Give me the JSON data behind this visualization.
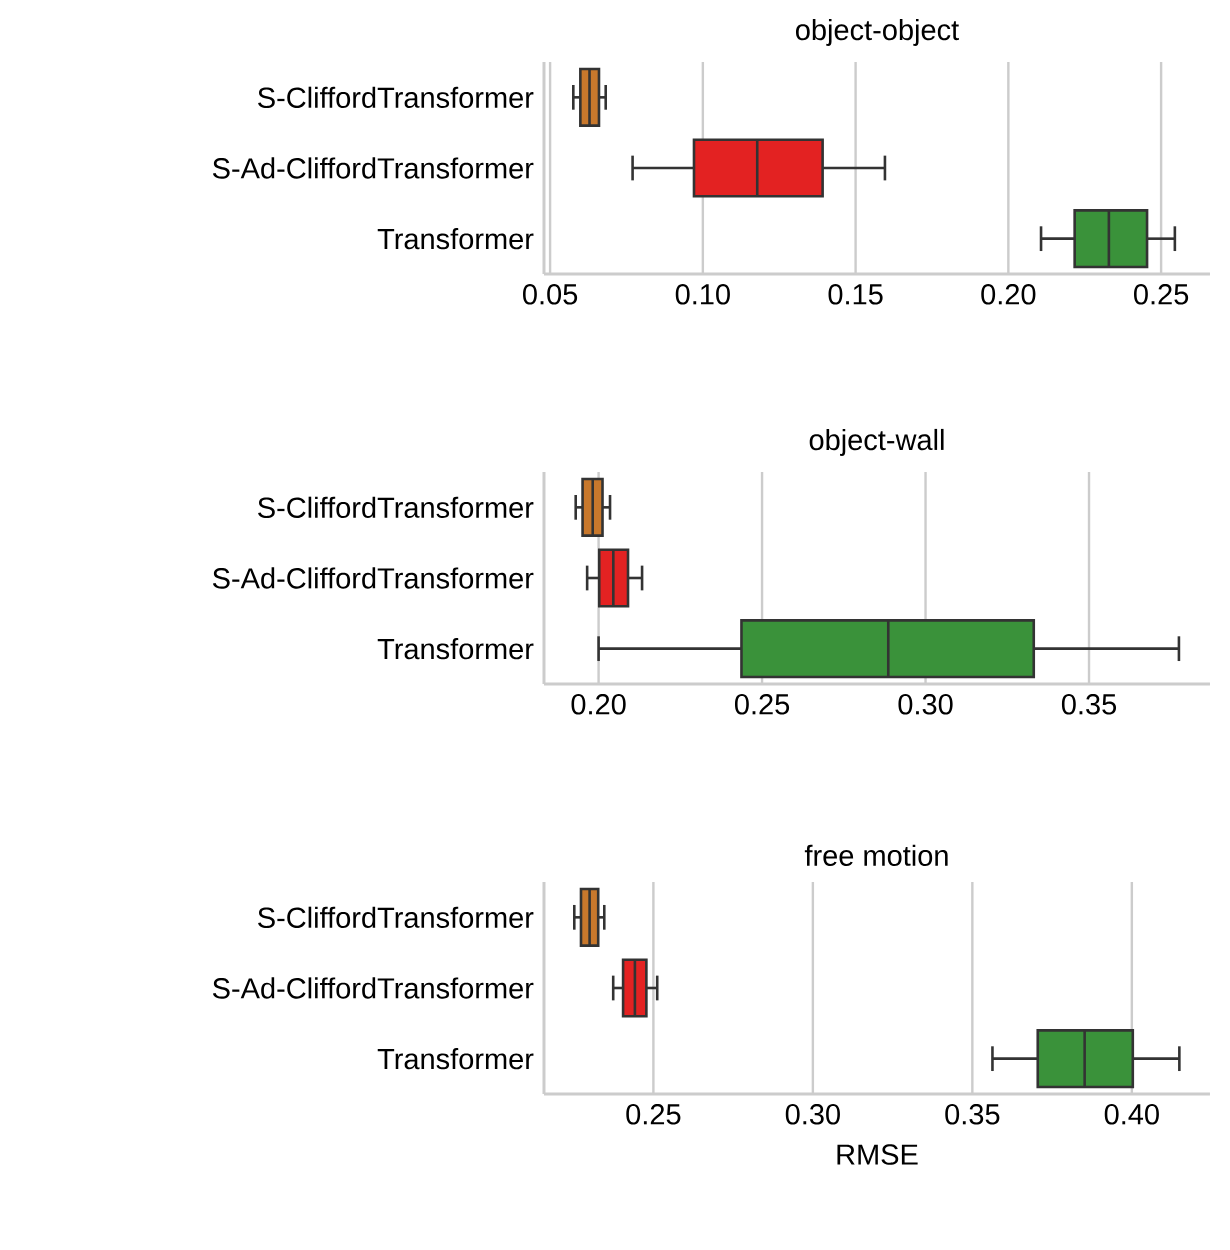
{
  "chart_data": [
    {
      "type": "box",
      "title": "object-object",
      "orientation": "horizontal",
      "grid": "x",
      "categories": [
        "S-CliffordTransformer",
        "S-Ad-CliffordTransformer",
        "Transformer"
      ],
      "colors": [
        "#c8782c",
        "#e32222",
        "#3a923a"
      ],
      "boxes": [
        {
          "low": 0.0576,
          "q1": 0.0599,
          "median": 0.0629,
          "q3": 0.066,
          "high": 0.0682
        },
        {
          "low": 0.077,
          "q1": 0.0971,
          "median": 0.1178,
          "q3": 0.1392,
          "high": 0.1596
        },
        {
          "low": 0.2107,
          "q1": 0.2217,
          "median": 0.2329,
          "q3": 0.2454,
          "high": 0.2545
        }
      ],
      "xlim": [
        0.048,
        0.266
      ],
      "xticks": [
        {
          "value": 0.05,
          "label": "0.05"
        },
        {
          "value": 0.1,
          "label": "0.10"
        },
        {
          "value": 0.15,
          "label": "0.15"
        },
        {
          "value": 0.2,
          "label": "0.20"
        },
        {
          "value": 0.25,
          "label": "0.25"
        }
      ]
    },
    {
      "type": "box",
      "title": "object-wall",
      "orientation": "horizontal",
      "grid": "x",
      "categories": [
        "S-CliffordTransformer",
        "S-Ad-CliffordTransformer",
        "Transformer"
      ],
      "colors": [
        "#c8782c",
        "#e32222",
        "#3a923a"
      ],
      "boxes": [
        {
          "low": 0.193,
          "q1": 0.1951,
          "median": 0.1982,
          "q3": 0.2012,
          "high": 0.2035
        },
        {
          "low": 0.1965,
          "q1": 0.2002,
          "median": 0.2045,
          "q3": 0.209,
          "high": 0.2133
        },
        {
          "low": 0.2,
          "q1": 0.2437,
          "median": 0.2886,
          "q3": 0.3331,
          "high": 0.3775
        }
      ],
      "xlim": [
        0.1833,
        0.387
      ],
      "xticks": [
        {
          "value": 0.2,
          "label": "0.20"
        },
        {
          "value": 0.25,
          "label": "0.25"
        },
        {
          "value": 0.3,
          "label": "0.30"
        },
        {
          "value": 0.35,
          "label": "0.35"
        }
      ]
    },
    {
      "type": "box",
      "title": "free motion",
      "xlabel": "RMSE",
      "orientation": "horizontal",
      "grid": "x",
      "categories": [
        "S-CliffordTransformer",
        "S-Ad-CliffordTransformer",
        "Transformer"
      ],
      "colors": [
        "#c8782c",
        "#e32222",
        "#3a923a"
      ],
      "boxes": [
        {
          "low": 0.2252,
          "q1": 0.2273,
          "median": 0.23,
          "q3": 0.2327,
          "high": 0.2346
        },
        {
          "low": 0.2374,
          "q1": 0.2405,
          "median": 0.2442,
          "q3": 0.2478,
          "high": 0.2512
        },
        {
          "low": 0.3563,
          "q1": 0.3705,
          "median": 0.3852,
          "q3": 0.4003,
          "high": 0.4149
        }
      ],
      "xlim": [
        0.2157,
        0.4245
      ],
      "xticks": [
        {
          "value": 0.25,
          "label": "0.25"
        },
        {
          "value": 0.3,
          "label": "0.30"
        },
        {
          "value": 0.35,
          "label": "0.35"
        },
        {
          "value": 0.4,
          "label": "0.40"
        }
      ]
    }
  ]
}
